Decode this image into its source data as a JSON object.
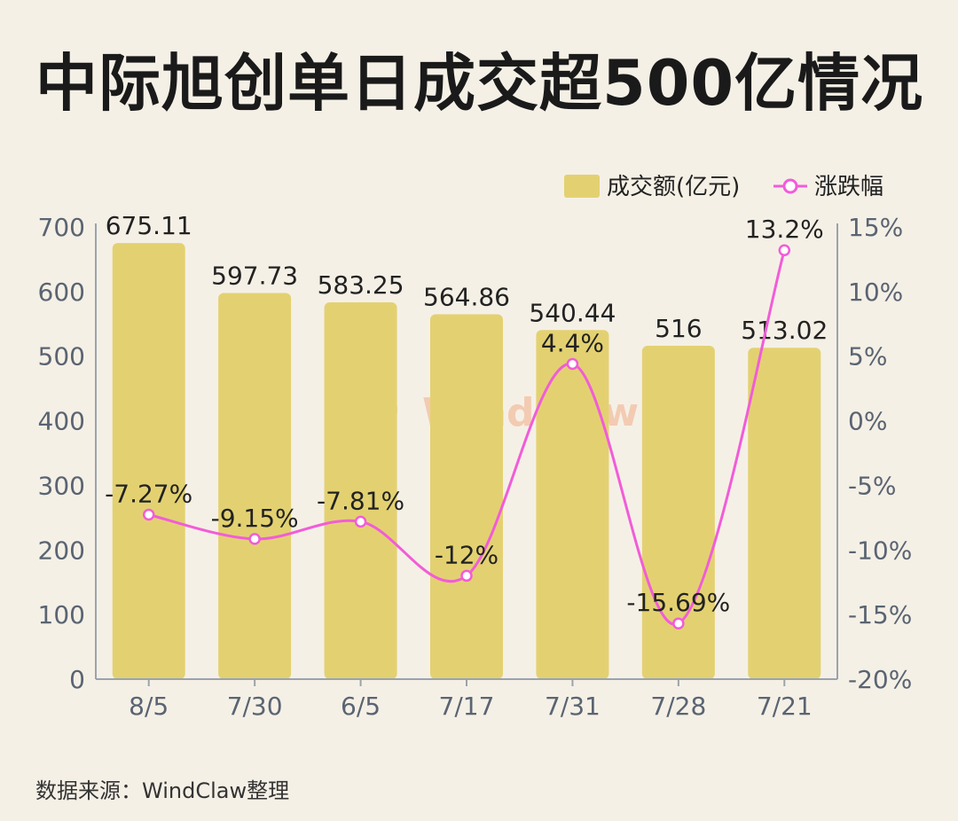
{
  "title": "中际旭创单日成交超500亿情况",
  "source": "数据来源：WindClaw整理",
  "watermark": "WindClaw",
  "colors": {
    "bar": "#e3d171",
    "line": "#f25cd8",
    "axis": "#5a6472",
    "background": "#f5f0e6"
  },
  "chart_data": {
    "type": "bar",
    "categories": [
      "8/5",
      "7/30",
      "6/5",
      "7/17",
      "7/31",
      "7/28",
      "7/21"
    ],
    "series": [
      {
        "name": "成交额(亿元)",
        "type": "bar",
        "axis": "left",
        "values": [
          675.11,
          597.73,
          583.25,
          564.86,
          540.44,
          516,
          513.02
        ],
        "labels": [
          "675.11",
          "597.73",
          "583.25",
          "564.86",
          "540.44",
          "516",
          "513.02"
        ]
      },
      {
        "name": "涨跌幅",
        "type": "line",
        "axis": "right",
        "values": [
          -7.27,
          -9.15,
          -7.81,
          -12,
          4.4,
          -15.69,
          13.2
        ],
        "labels": [
          "-7.27%",
          "-9.15%",
          "-7.81%",
          "-12%",
          "4.4%",
          "-15.69%",
          "13.2%"
        ]
      }
    ],
    "y_left": {
      "range": [
        0,
        700
      ],
      "ticks": [
        "0",
        "100",
        "200",
        "300",
        "400",
        "500",
        "600",
        "700"
      ]
    },
    "y_right": {
      "range": [
        -20,
        15
      ],
      "ticks": [
        "-20%",
        "-15%",
        "-10%",
        "-5%",
        "0%",
        "5%",
        "10%",
        "15%"
      ]
    },
    "legend_position": "top-right",
    "grid": false
  }
}
